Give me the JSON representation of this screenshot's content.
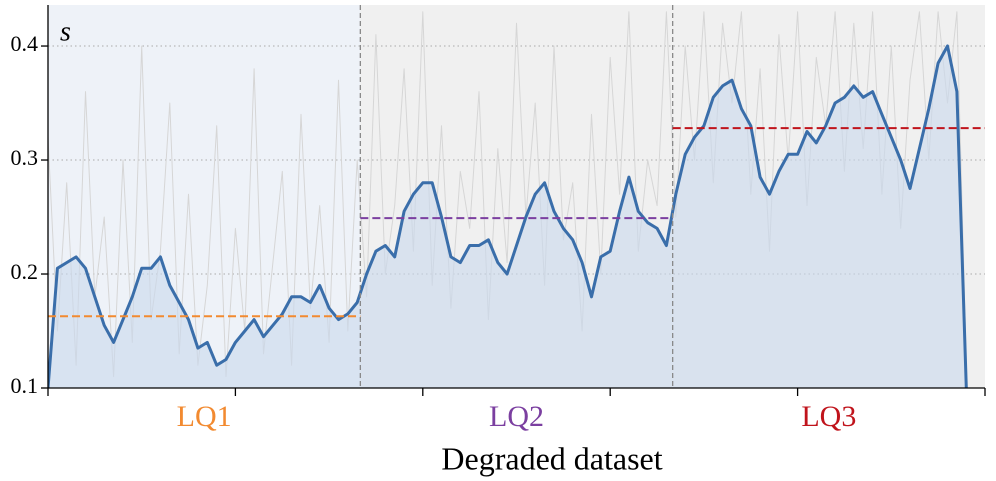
{
  "chart_data": {
    "type": "line",
    "y_label": "s",
    "x_label": "Degraded dataset",
    "x": [
      0,
      3,
      6,
      9,
      12,
      15,
      18,
      21,
      24,
      27,
      30,
      33,
      36,
      39,
      42,
      45,
      48,
      51,
      54,
      57,
      60,
      63,
      66,
      69,
      72,
      75,
      78,
      81,
      84,
      87,
      90,
      93,
      96,
      99,
      102,
      105,
      108,
      111,
      114,
      117,
      120,
      123,
      126,
      129,
      132,
      135,
      138,
      141,
      144,
      147,
      150,
      153,
      156,
      159,
      162,
      165,
      168,
      171,
      174,
      177,
      180,
      183,
      186,
      189,
      192,
      195,
      198,
      201,
      204,
      207,
      210,
      213,
      216,
      219,
      222,
      225,
      228,
      231,
      234,
      237,
      240,
      243,
      246,
      249,
      252,
      255,
      258,
      261,
      264,
      267,
      270,
      273,
      276,
      279,
      282,
      285,
      288,
      291,
      294
    ],
    "series": [
      {
        "color": "#d6d6d6",
        "values": [
          0.32,
          0.15,
          0.28,
          0.12,
          0.36,
          0.18,
          0.25,
          0.11,
          0.3,
          0.14,
          0.4,
          0.16,
          0.22,
          0.35,
          0.13,
          0.27,
          0.12,
          0.19,
          0.33,
          0.11,
          0.24,
          0.15,
          0.38,
          0.13,
          0.21,
          0.29,
          0.12,
          0.34,
          0.17,
          0.26,
          0.14,
          0.37,
          0.15,
          0.3,
          0.18,
          0.41,
          0.2,
          0.26,
          0.38,
          0.22,
          0.43,
          0.19,
          0.33,
          0.17,
          0.29,
          0.24,
          0.36,
          0.16,
          0.31,
          0.21,
          0.42,
          0.25,
          0.35,
          0.19,
          0.4,
          0.23,
          0.28,
          0.15,
          0.34,
          0.2,
          0.39,
          0.27,
          0.43,
          0.22,
          0.3,
          0.26,
          0.43,
          0.25,
          0.4,
          0.3,
          0.43,
          0.28,
          0.42,
          0.35,
          0.43,
          0.27,
          0.38,
          0.22,
          0.41,
          0.3,
          0.43,
          0.26,
          0.39,
          0.33,
          0.43,
          0.29,
          0.42,
          0.31,
          0.43,
          0.27,
          0.4,
          0.24,
          0.37,
          0.43,
          0.3,
          0.43,
          0.35,
          0.43,
          0.12
        ]
      },
      {
        "color": "#3a6eaa",
        "fill": "#c9d8ec",
        "values": [
          0.1,
          0.205,
          0.21,
          0.215,
          0.205,
          0.18,
          0.155,
          0.14,
          0.16,
          0.18,
          0.205,
          0.205,
          0.215,
          0.19,
          0.175,
          0.16,
          0.135,
          0.14,
          0.12,
          0.125,
          0.14,
          0.15,
          0.16,
          0.145,
          0.155,
          0.165,
          0.18,
          0.18,
          0.175,
          0.19,
          0.17,
          0.16,
          0.165,
          0.175,
          0.2,
          0.22,
          0.225,
          0.215,
          0.255,
          0.27,
          0.28,
          0.28,
          0.25,
          0.215,
          0.21,
          0.225,
          0.225,
          0.23,
          0.21,
          0.2,
          0.225,
          0.25,
          0.27,
          0.28,
          0.255,
          0.24,
          0.23,
          0.21,
          0.18,
          0.215,
          0.22,
          0.255,
          0.285,
          0.255,
          0.245,
          0.24,
          0.225,
          0.27,
          0.305,
          0.32,
          0.33,
          0.355,
          0.365,
          0.37,
          0.345,
          0.33,
          0.285,
          0.27,
          0.29,
          0.305,
          0.305,
          0.325,
          0.315,
          0.33,
          0.35,
          0.355,
          0.365,
          0.355,
          0.36,
          0.34,
          0.32,
          0.3,
          0.275,
          0.31,
          0.345,
          0.385,
          0.4,
          0.36,
          0.1
        ]
      }
    ],
    "regions": [
      {
        "name": "LQ1",
        "start": 0,
        "end": 100,
        "mean": 0.163,
        "color": "#f28a30",
        "background": "#eef2f8"
      },
      {
        "name": "LQ2",
        "start": 100,
        "end": 200,
        "mean": 0.249,
        "color": "#7b3fa0",
        "background": "#f0f0f0"
      },
      {
        "name": "LQ3",
        "start": 200,
        "end": 300,
        "mean": 0.328,
        "color": "#c0141c",
        "background": "#f0f0f0"
      }
    ],
    "xlim": [
      0,
      300
    ],
    "xticks": [
      0,
      60,
      120,
      180,
      240,
      300
    ],
    "ylim": [
      0.1,
      0.436
    ],
    "yticks": [
      0.1,
      0.2,
      0.3,
      0.4
    ],
    "grid": true
  }
}
